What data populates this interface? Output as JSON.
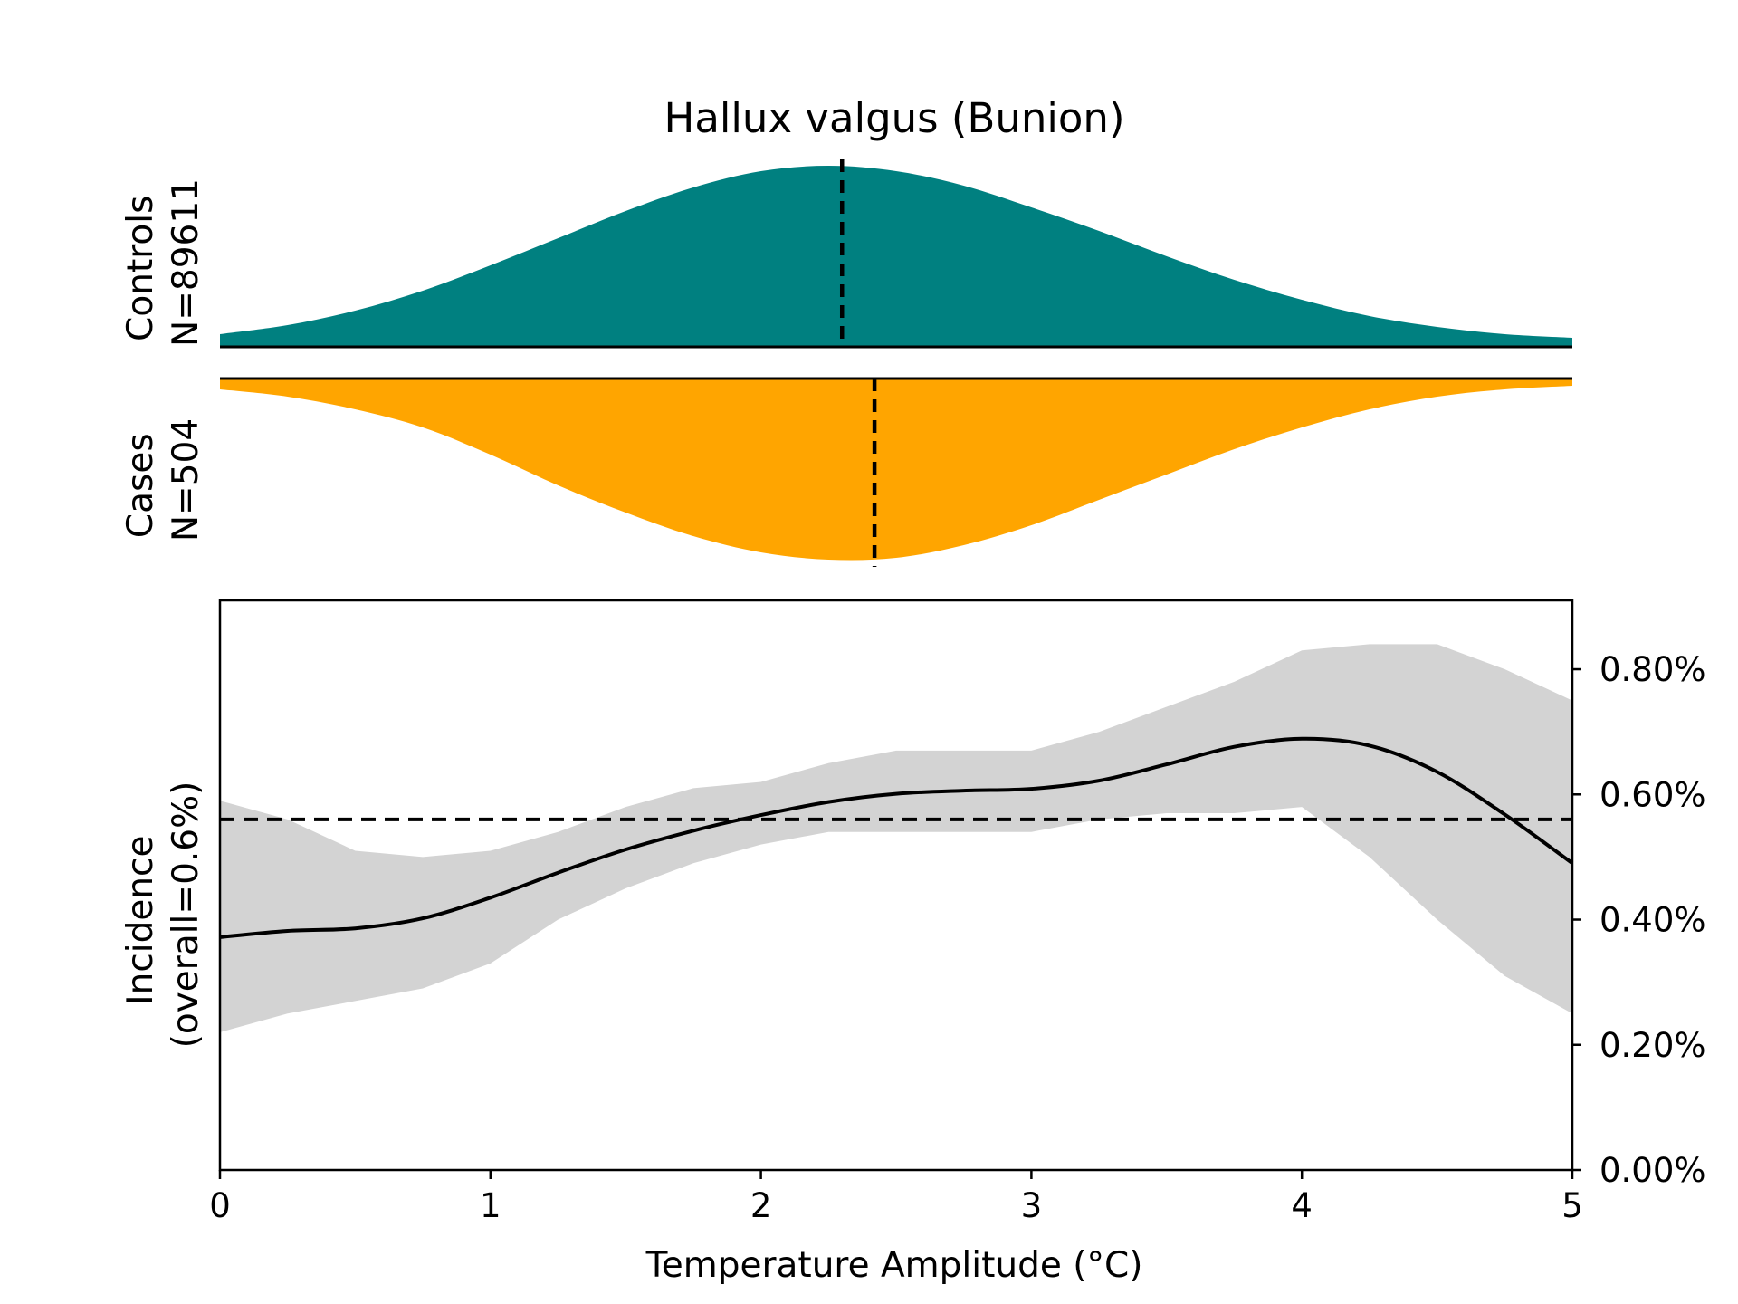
{
  "chart_data": {
    "type": "area",
    "title": "Hallux valgus (Bunion)",
    "xlabel": "Temperature Amplitude (°C)",
    "xlim": [
      0,
      5
    ],
    "x_ticks": [
      "0",
      "1",
      "2",
      "3",
      "4",
      "5"
    ],
    "colors": {
      "controls": "#008080",
      "cases": "#FFA500",
      "ci_band": "#D3D3D3",
      "line": "#000000"
    },
    "controls": {
      "label_line1": "Controls",
      "label_line2": "N=89611",
      "median": 2.3,
      "density": {
        "x": [
          0,
          0.25,
          0.5,
          0.75,
          1,
          1.25,
          1.5,
          1.75,
          2,
          2.25,
          2.5,
          2.75,
          3,
          3.25,
          3.5,
          3.75,
          4,
          4.25,
          4.5,
          4.75,
          5
        ],
        "y": [
          0.07,
          0.12,
          0.2,
          0.31,
          0.45,
          0.6,
          0.75,
          0.88,
          0.97,
          1.0,
          0.97,
          0.89,
          0.77,
          0.64,
          0.5,
          0.37,
          0.26,
          0.17,
          0.11,
          0.07,
          0.05
        ]
      }
    },
    "cases": {
      "label_line1": "Cases",
      "label_line2": "N=504",
      "median": 2.42,
      "density": {
        "x": [
          0,
          0.25,
          0.5,
          0.75,
          1,
          1.25,
          1.5,
          1.75,
          2,
          2.25,
          2.5,
          2.75,
          3,
          3.25,
          3.5,
          3.75,
          4,
          4.25,
          4.5,
          4.75,
          5
        ],
        "y": [
          0.06,
          0.1,
          0.17,
          0.27,
          0.42,
          0.59,
          0.74,
          0.87,
          0.96,
          1.0,
          0.99,
          0.92,
          0.81,
          0.67,
          0.53,
          0.39,
          0.27,
          0.17,
          0.1,
          0.06,
          0.04
        ]
      }
    },
    "incidence": {
      "ylabel_line1": "Incidence",
      "ylabel_line2": "(overall=0.6%)",
      "ylim": [
        0,
        0.0091
      ],
      "y_ticks": [
        {
          "value": 0.0,
          "label": "0.00%"
        },
        {
          "value": 0.002,
          "label": "0.20%"
        },
        {
          "value": 0.004,
          "label": "0.40%"
        },
        {
          "value": 0.006,
          "label": "0.60%"
        },
        {
          "value": 0.008,
          "label": "0.80%"
        }
      ],
      "overall": 0.0056,
      "x": [
        0,
        0.25,
        0.5,
        0.75,
        1,
        1.25,
        1.5,
        1.75,
        2,
        2.25,
        2.5,
        2.75,
        3,
        3.25,
        3.5,
        3.75,
        4,
        4.25,
        4.5,
        4.75,
        5
      ],
      "estimate": [
        0.00372,
        0.00382,
        0.00386,
        0.00402,
        0.00435,
        0.00475,
        0.00512,
        0.00542,
        0.00567,
        0.00588,
        0.00601,
        0.00606,
        0.00609,
        0.00622,
        0.00648,
        0.00676,
        0.00689,
        0.00678,
        0.00636,
        0.00568,
        0.0049
      ],
      "upper": [
        0.0059,
        0.0056,
        0.0051,
        0.005,
        0.0051,
        0.0054,
        0.0058,
        0.0061,
        0.0062,
        0.0065,
        0.0067,
        0.0067,
        0.0067,
        0.007,
        0.0074,
        0.0078,
        0.0083,
        0.0084,
        0.0084,
        0.008,
        0.0075
      ],
      "lower": [
        0.0022,
        0.0025,
        0.0027,
        0.0029,
        0.0033,
        0.004,
        0.0045,
        0.0049,
        0.0052,
        0.0054,
        0.0054,
        0.0054,
        0.0054,
        0.0056,
        0.0057,
        0.0057,
        0.0058,
        0.005,
        0.004,
        0.0031,
        0.0025
      ]
    }
  }
}
